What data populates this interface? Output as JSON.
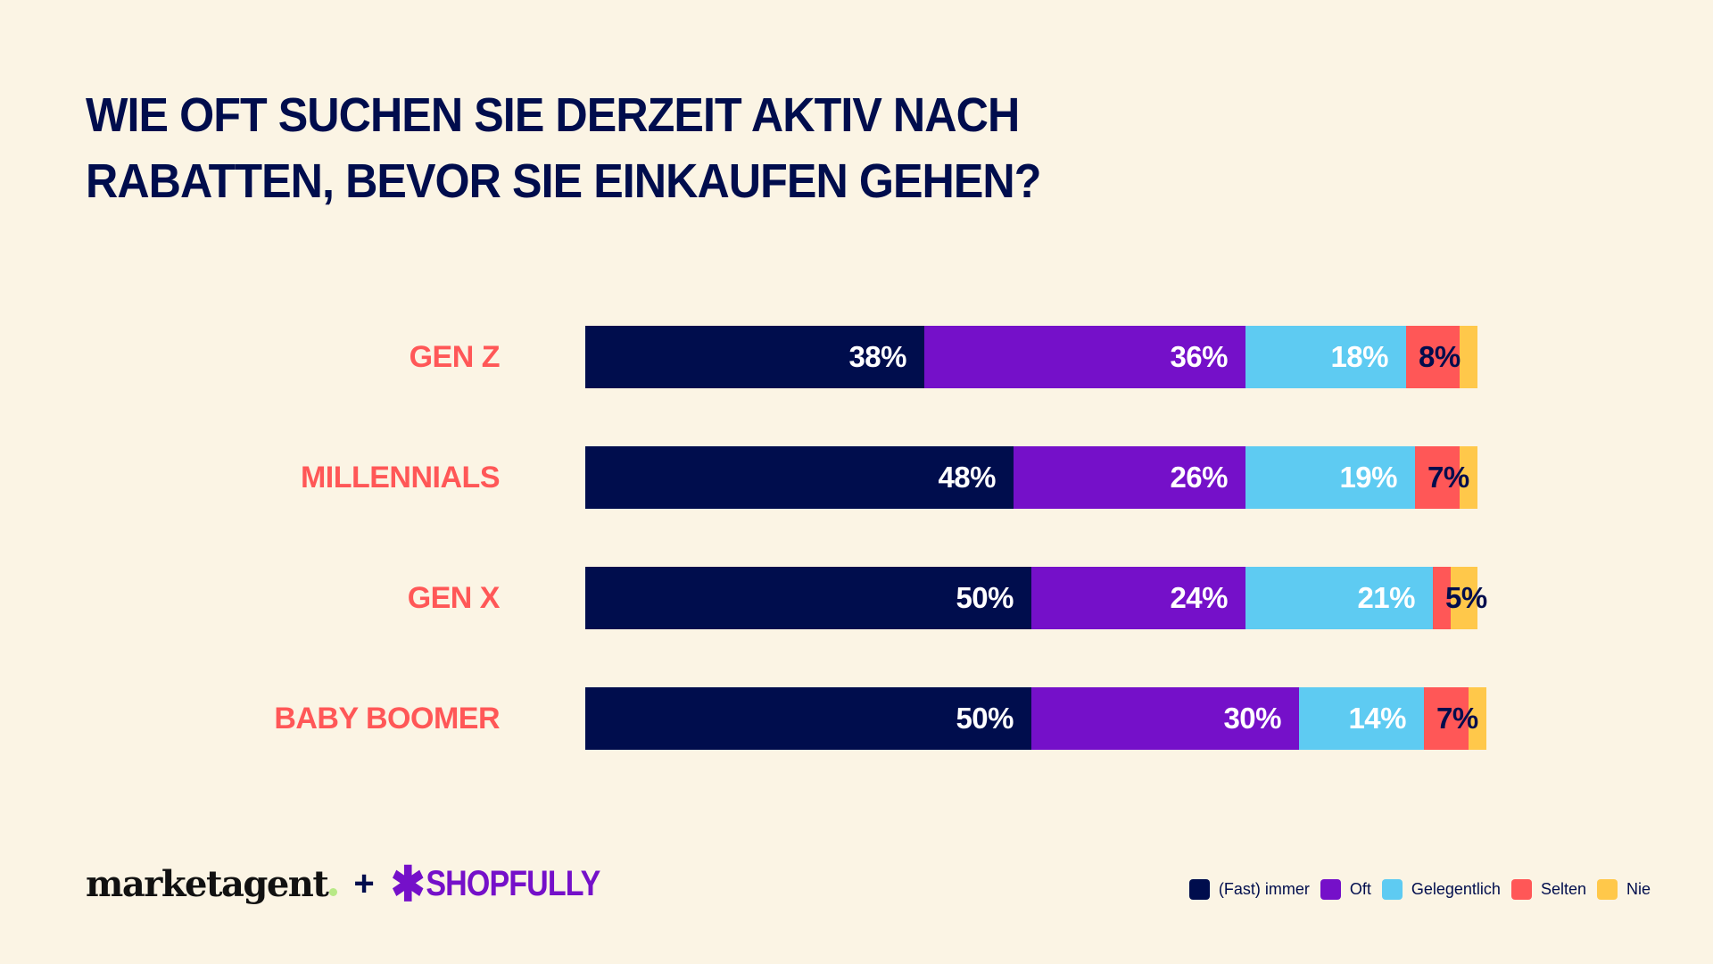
{
  "chart_data": {
    "type": "bar",
    "orientation": "horizontal",
    "stacked": true,
    "title": "WIE OFT SUCHEN SIE DERZEIT AKTIV NACH RABATTEN, BEVOR SIE EINKAUFEN GEHEN?",
    "categories": [
      "GEN Z",
      "MILLENNIALS",
      "GEN X",
      "BABY BOOMER"
    ],
    "series": [
      {
        "name": "(Fast) immer",
        "color": "#000d4d",
        "values": [
          38,
          48,
          50,
          50
        ]
      },
      {
        "name": "Oft",
        "color": "#7510c9",
        "values": [
          36,
          26,
          24,
          30
        ]
      },
      {
        "name": "Gelegentlich",
        "color": "#5ecbf2",
        "values": [
          18,
          19,
          21,
          14
        ]
      },
      {
        "name": "Selten",
        "color": "#ff5757",
        "values": [
          6,
          5,
          2,
          5
        ]
      },
      {
        "name": "Nie",
        "color": "#ffc84a",
        "values": [
          2,
          2,
          3,
          2
        ]
      }
    ],
    "labels": [
      [
        "38%",
        "36%",
        "18%",
        "8%"
      ],
      [
        "48%",
        "26%",
        "19%",
        "7%"
      ],
      [
        "50%",
        "24%",
        "21%",
        "5%"
      ],
      [
        "50%",
        "30%",
        "14%",
        "7%"
      ]
    ],
    "xlim": [
      0,
      100
    ],
    "grid": false,
    "legend_position": "bottom-right"
  },
  "title_lines": [
    "WIE OFT SUCHEN SIE DERZEIT AKTIV NACH",
    "RABATTEN, BEVOR SIE EINKAUFEN GEHEN?"
  ],
  "logos": {
    "marketagent": "marketagent",
    "plus": "+",
    "shopfully": "SHOPFULLY"
  }
}
